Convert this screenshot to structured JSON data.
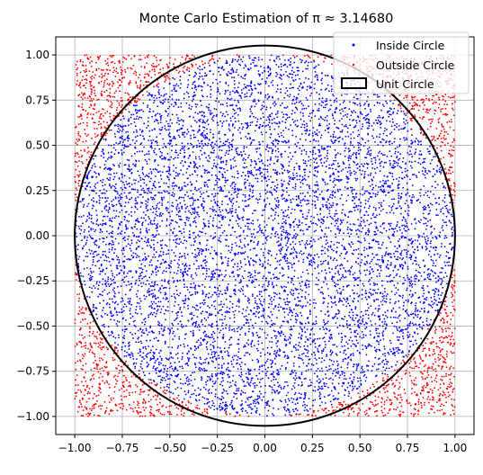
{
  "chart_data": {
    "type": "scatter",
    "title": "Monte Carlo Estimation of π ≈ 3.14680",
    "xlabel": "",
    "ylabel": "",
    "xlim": [
      -1.1,
      1.1
    ],
    "ylim": [
      -1.1,
      1.1
    ],
    "grid": true,
    "legend_position": "top-right",
    "x_ticks": [
      "−1.00",
      "−0.75",
      "−0.50",
      "−0.25",
      "0.00",
      "0.25",
      "0.50",
      "0.75",
      "1.00"
    ],
    "y_ticks": [
      "1.00",
      "0.75",
      "0.50",
      "0.25",
      "0.00",
      "−0.25",
      "−0.50",
      "−0.75",
      "−1.00"
    ],
    "x_tick_values": [
      -1.0,
      -0.75,
      -0.5,
      -0.25,
      0.0,
      0.25,
      0.5,
      0.75,
      1.0
    ],
    "y_tick_values": [
      1.0,
      0.75,
      0.5,
      0.25,
      0.0,
      -0.25,
      -0.5,
      -0.75,
      -1.0
    ],
    "sample_region": {
      "x": [
        -1,
        1
      ],
      "y": [
        -1,
        1
      ]
    },
    "pi_estimate": 3.1468,
    "series": [
      {
        "name": "Inside Circle",
        "color": "#0000ff",
        "marker": "dot",
        "condition": "x^2 + y^2 <= 1"
      },
      {
        "name": "Outside Circle",
        "color": "#ff0000",
        "marker": "dot",
        "condition": "x^2 + y^2 > 1"
      }
    ],
    "reference_shape": {
      "name": "Unit Circle",
      "type": "circle",
      "center": [
        0,
        0
      ],
      "radius": 1,
      "color": "#000000"
    }
  }
}
